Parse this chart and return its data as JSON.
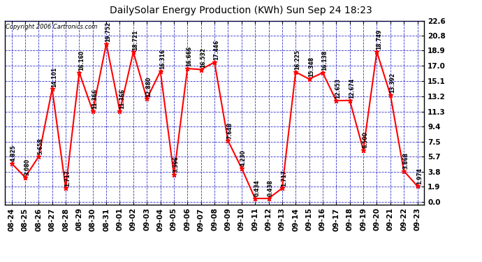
{
  "title": "DailySolar Energy Production (KWh) Sun Sep 24 18:23",
  "copyright_text": "Copyright 2006 Cartronics.com",
  "dates": [
    "08-24",
    "08-25",
    "08-26",
    "08-27",
    "08-28",
    "08-29",
    "08-30",
    "08-31",
    "09-01",
    "09-02",
    "09-03",
    "09-04",
    "09-05",
    "09-06",
    "09-07",
    "09-08",
    "09-09",
    "09-10",
    "09-11",
    "09-12",
    "09-13",
    "09-14",
    "09-15",
    "09-16",
    "09-17",
    "09-18",
    "09-19",
    "09-20",
    "09-21",
    "09-22",
    "09-23"
  ],
  "values": [
    4.825,
    3.08,
    5.658,
    14.101,
    1.717,
    16.16,
    11.366,
    19.752,
    11.366,
    18.721,
    12.88,
    16.316,
    3.396,
    16.666,
    16.532,
    17.446,
    7.648,
    4.23,
    0.434,
    0.438,
    1.717,
    16.225,
    15.348,
    16.138,
    12.653,
    12.674,
    6.5,
    18.749,
    13.392,
    3.868,
    1.974
  ],
  "labels": [
    "4.825",
    "3.080",
    "5.658",
    "14.101",
    "1.717",
    "16.160",
    "11.366",
    "19.752",
    "11.366",
    "18.721",
    "12.880",
    "16.316",
    "3.396",
    "16.666",
    "16.532",
    "17.446",
    "7.648",
    "4.230",
    "0.434",
    "0.438",
    "1.717",
    "16.225",
    "15.348",
    "16.138",
    "12.653",
    "12.674",
    "6.500",
    "18.749",
    "13.392",
    "3.868",
    "1.974"
  ],
  "line_color": "#FF0000",
  "marker_color": "#FF0000",
  "bg_color": "#FFFFFF",
  "plot_bg_color": "#FFFFFF",
  "grid_color": "#0000BB",
  "text_color": "#000000",
  "label_color": "#000000",
  "yticks": [
    0.0,
    1.9,
    3.8,
    5.7,
    7.5,
    9.4,
    11.3,
    13.2,
    15.1,
    17.0,
    18.9,
    20.8,
    22.6
  ],
  "ylim": [
    -0.3,
    22.6
  ],
  "title_fontsize": 10,
  "label_fontsize": 5.5,
  "tick_fontsize": 7.5,
  "copyright_fontsize": 6
}
